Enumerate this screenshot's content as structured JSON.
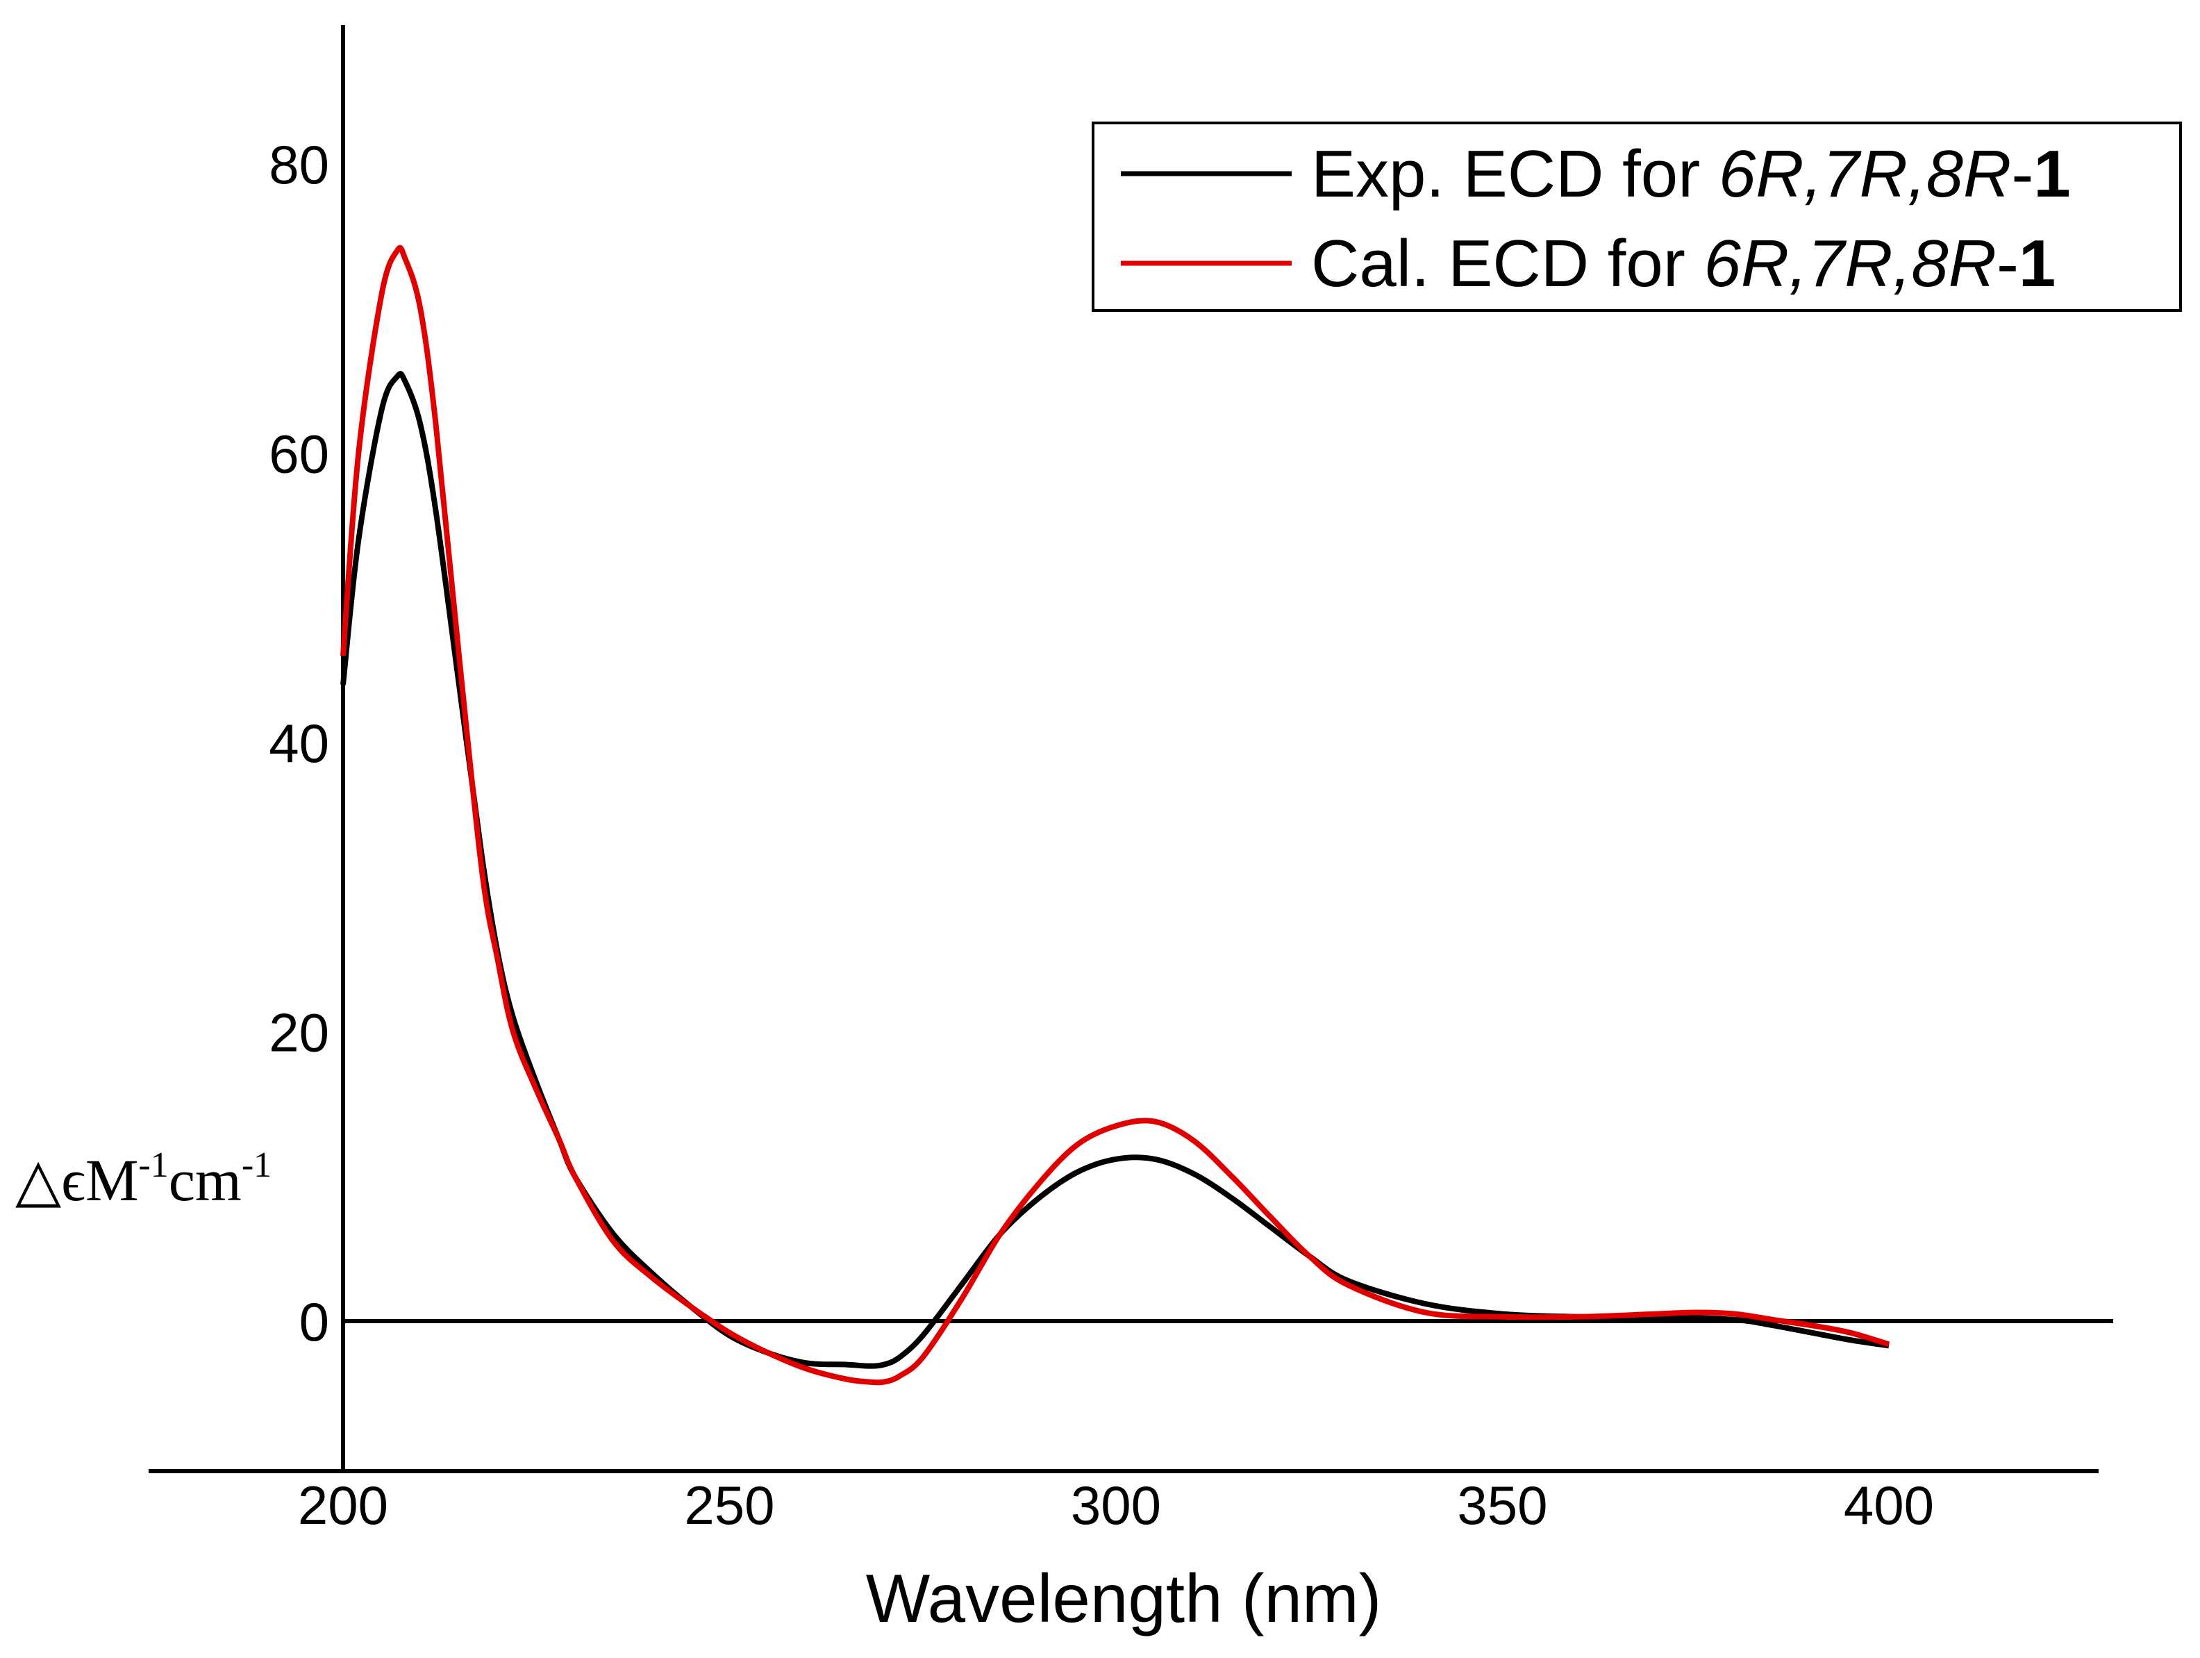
{
  "chart_data": {
    "type": "line",
    "xlabel": "Wavelength (nm)",
    "ylabel": {
      "symbol": "△ϵM",
      "exp1": "-1",
      "unit": "cm",
      "exp2": "-1"
    },
    "xlim": [
      175,
      428
    ],
    "ylim": [
      -12,
      90
    ],
    "x_ticks": [
      200,
      250,
      300,
      350,
      400
    ],
    "y_ticks": [
      0,
      20,
      40,
      60,
      80
    ],
    "zero_line": true,
    "legend_position": "top-right",
    "series": [
      {
        "name": "Exp. ECD for 6R,7R,8R-1",
        "legend": {
          "prefix": "Exp. ECD for ",
          "italic": "6R,7R,8R",
          "dash": "-",
          "bold": "1"
        },
        "color": "#000000",
        "x": [
          200,
          202,
          205,
          207,
          208,
          210,
          212,
          215,
          218,
          220,
          222,
          225,
          228,
          230,
          235,
          240,
          245,
          250,
          255,
          260,
          265,
          268,
          270,
          272,
          275,
          280,
          285,
          290,
          295,
          300,
          305,
          310,
          315,
          320,
          325,
          330,
          340,
          350,
          360,
          370,
          380,
          385,
          390,
          395,
          400
        ],
        "y": [
          44,
          54,
          63,
          65.3,
          65,
          62,
          56,
          44,
          32,
          25.5,
          21,
          16.5,
          12.5,
          10,
          6,
          3.3,
          1,
          -1,
          -2.2,
          -2.9,
          -3,
          -3.1,
          -3,
          -2.5,
          -1,
          2.5,
          6,
          8.5,
          10.3,
          11.2,
          11.2,
          10.2,
          8.5,
          6.5,
          4.5,
          2.8,
          1.2,
          0.5,
          0.3,
          0.3,
          0.1,
          -0.3,
          -0.8,
          -1.3,
          -1.7
        ]
      },
      {
        "name": "Cal. ECD for 6R,7R,8R-1",
        "legend": {
          "prefix": "Cal. ECD for ",
          "italic": "6R,7R,8R",
          "dash": "-",
          "bold": "1"
        },
        "color": "#e00000",
        "x": [
          200,
          202,
          205,
          207,
          208,
          210,
          212,
          215,
          218,
          220,
          222,
          225,
          228,
          230,
          235,
          240,
          245,
          250,
          255,
          260,
          265,
          268,
          270,
          272,
          275,
          280,
          285,
          290,
          295,
          300,
          305,
          310,
          315,
          320,
          325,
          330,
          340,
          350,
          360,
          370,
          375,
          380,
          385,
          390,
          395,
          400
        ],
        "y": [
          46,
          60,
          71,
          74,
          73.5,
          70,
          62,
          46,
          31,
          25,
          20,
          16,
          12.5,
          10,
          5.5,
          3,
          1,
          -0.8,
          -2.2,
          -3.3,
          -4,
          -4.2,
          -4.2,
          -3.8,
          -2.5,
          1.5,
          6,
          9.5,
          12.2,
          13.5,
          13.8,
          12.5,
          10,
          7.2,
          4.5,
          2.5,
          0.6,
          0.3,
          0.3,
          0.5,
          0.6,
          0.5,
          0.1,
          -0.3,
          -0.8,
          -1.6
        ]
      }
    ]
  }
}
